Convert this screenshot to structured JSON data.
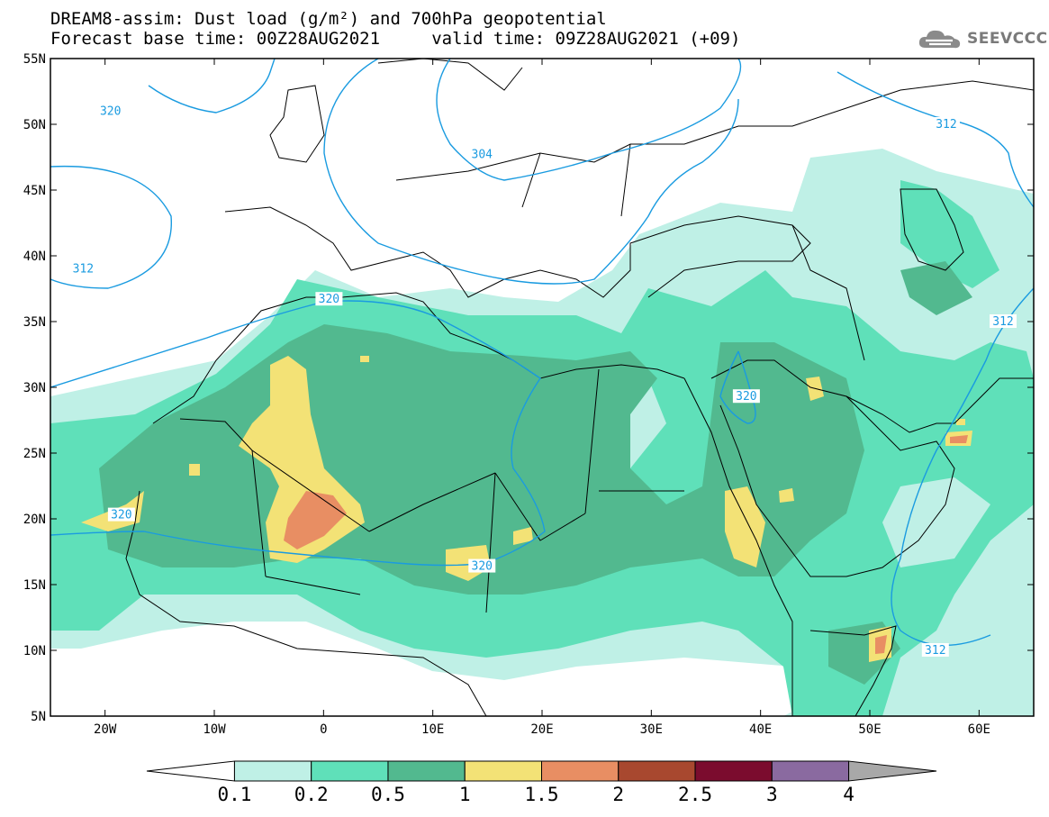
{
  "title": {
    "line1": "DREAM8-assim: Dust load (g/m²) and 700hPa geopotential",
    "line2": "Forecast base time: 00Z28AUG2021     valid time: 09Z28AUG2021 (+09)"
  },
  "brand": {
    "text": "SEEVCCC",
    "icon": "cloud-logo-icon"
  },
  "map": {
    "lon_range": [
      -25,
      65
    ],
    "lat_range": [
      5,
      55
    ],
    "lon_ticks": [
      {
        "value": -20,
        "label": "20W"
      },
      {
        "value": -10,
        "label": "10W"
      },
      {
        "value": 0,
        "label": "0"
      },
      {
        "value": 10,
        "label": "10E"
      },
      {
        "value": 20,
        "label": "20E"
      },
      {
        "value": 30,
        "label": "30E"
      },
      {
        "value": 40,
        "label": "40E"
      },
      {
        "value": 50,
        "label": "50E"
      },
      {
        "value": 60,
        "label": "60E"
      }
    ],
    "lat_ticks": [
      {
        "value": 55,
        "label": "55N"
      },
      {
        "value": 50,
        "label": "50N"
      },
      {
        "value": 45,
        "label": "45N"
      },
      {
        "value": 40,
        "label": "40N"
      },
      {
        "value": 35,
        "label": "35N"
      },
      {
        "value": 30,
        "label": "30N"
      },
      {
        "value": 25,
        "label": "25N"
      },
      {
        "value": 20,
        "label": "20N"
      },
      {
        "value": 15,
        "label": "15N"
      },
      {
        "value": 10,
        "label": "10N"
      },
      {
        "value": 5,
        "label": "5N"
      }
    ],
    "contour_labels": [
      {
        "text": "320",
        "lon": -19.5,
        "lat": 51.0
      },
      {
        "text": "312",
        "lon": -22.0,
        "lat": 39.0
      },
      {
        "text": "320",
        "lon": 0.5,
        "lat": 36.7
      },
      {
        "text": "320",
        "lon": -18.5,
        "lat": 20.3
      },
      {
        "text": "320",
        "lon": 14.5,
        "lat": 16.4
      },
      {
        "text": "320",
        "lon": 38.7,
        "lat": 29.3
      },
      {
        "text": "304",
        "lon": 14.5,
        "lat": 47.7
      },
      {
        "text": "312",
        "lon": 57.0,
        "lat": 50.0
      },
      {
        "text": "312",
        "lon": 62.2,
        "lat": 35.0
      },
      {
        "text": "312",
        "lon": 56.0,
        "lat": 10.0
      }
    ]
  },
  "colorbar": {
    "levels": [
      "0.1",
      "0.2",
      "0.5",
      "1",
      "1.5",
      "2",
      "2.5",
      "3",
      "4"
    ],
    "colors": [
      "#ffffff",
      "#bff0e6",
      "#5fe0b9",
      "#52b98f",
      "#f3e276",
      "#e88e63",
      "#a8482f",
      "#7b0c2e",
      "#8a6aa0",
      "#a8a8a8"
    ]
  },
  "colors": {
    "coast": "#000000",
    "contour": "#1a9be0",
    "dust_0_1": "#bff0e6",
    "dust_0_2": "#5fe0b9",
    "dust_0_5": "#52b98f",
    "dust_1": "#f3e276",
    "dust_1_5": "#e88e63"
  }
}
